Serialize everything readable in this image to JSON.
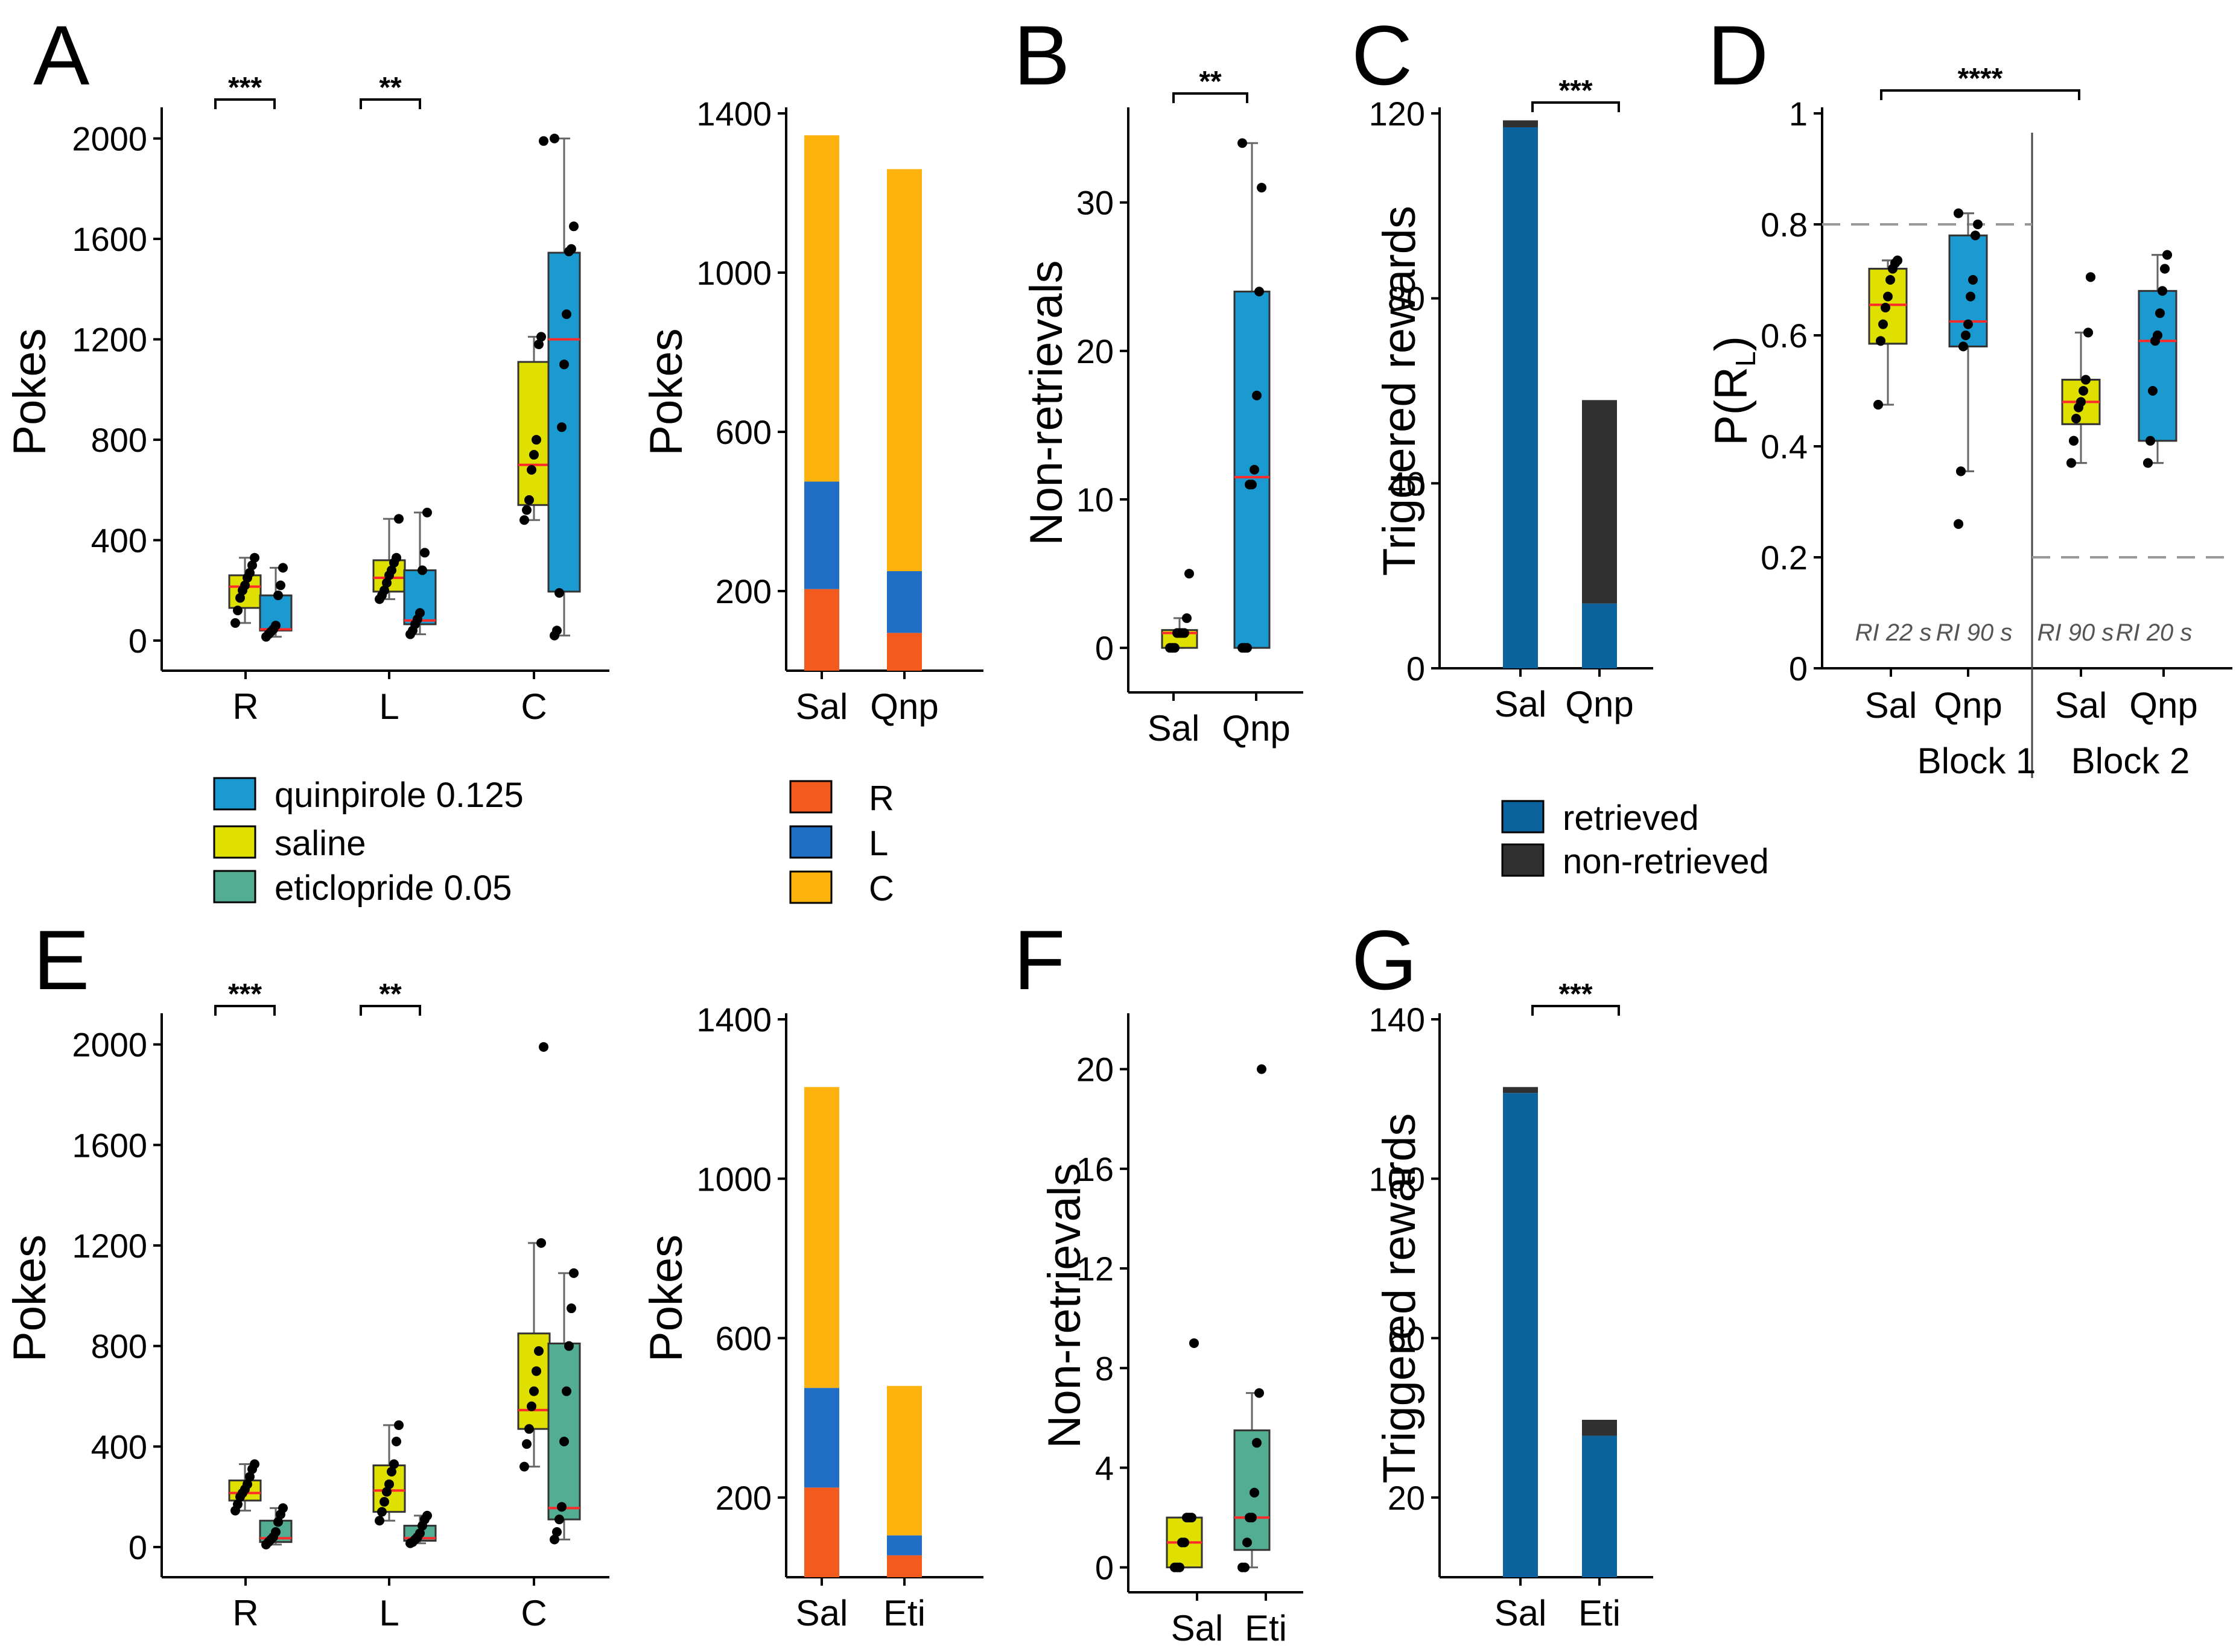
{
  "colors": {
    "quinpirole": "#1a9ad1",
    "saline": "#e0e000",
    "eticlopride": "#52ad92",
    "median": "#ff2a2a",
    "R": "#f25a1e",
    "L": "#1f6dc4",
    "C": "#fdb20d",
    "retrieved": "#0b629c",
    "nonretrieved": "#303030"
  },
  "legend_treatments": [
    "quinpirole 0.125",
    "saline",
    "eticlopride 0.05"
  ],
  "legend_ports": [
    "R",
    "L",
    "C"
  ],
  "legend_rewards": [
    "retrieved",
    "non-retrieved"
  ],
  "chart_data": [
    {
      "id": "A_box",
      "letter": "A",
      "type": "box",
      "ylabel": "Pokes",
      "ylim": [
        -120,
        2100
      ],
      "yticks": [
        0,
        400,
        800,
        1200,
        1600,
        2000
      ],
      "categories": [
        "R",
        "L",
        "C"
      ],
      "groups": [
        {
          "cat": "R",
          "treatment": "saline",
          "q1": 130,
          "median": 215,
          "q3": 260,
          "whislo": 70,
          "whishi": 330,
          "points": [
            70,
            120,
            170,
            200,
            220,
            250,
            270,
            300,
            330
          ]
        },
        {
          "cat": "R",
          "treatment": "quinpirole",
          "q1": 40,
          "median": 45,
          "q3": 180,
          "whislo": 15,
          "whishi": 290,
          "points": [
            15,
            25,
            35,
            45,
            60,
            180,
            220,
            290
          ]
        },
        {
          "cat": "L",
          "treatment": "saline",
          "q1": 195,
          "median": 250,
          "q3": 320,
          "whislo": 165,
          "whishi": 485,
          "points": [
            165,
            180,
            200,
            230,
            260,
            280,
            310,
            330,
            485
          ]
        },
        {
          "cat": "L",
          "treatment": "quinpirole",
          "q1": 65,
          "median": 80,
          "q3": 280,
          "whislo": 25,
          "whishi": 510,
          "points": [
            25,
            40,
            65,
            85,
            110,
            280,
            350,
            510
          ]
        },
        {
          "cat": "C",
          "treatment": "saline",
          "q1": 540,
          "median": 700,
          "q3": 1110,
          "whislo": 480,
          "whishi": 1210,
          "points": [
            480,
            520,
            560,
            680,
            740,
            800,
            1180,
            1210,
            1990
          ]
        },
        {
          "cat": "C",
          "treatment": "quinpirole",
          "q1": 195,
          "median": 1200,
          "q3": 1545,
          "whislo": 20,
          "whishi": 2000,
          "points": [
            20,
            40,
            190,
            850,
            1100,
            1300,
            1550,
            1560,
            1650,
            2000
          ]
        }
      ],
      "significance": [
        {
          "cat": "R",
          "label": "***"
        },
        {
          "cat": "L",
          "label": "**"
        }
      ]
    },
    {
      "id": "A_stack",
      "type": "stacked-bar",
      "ylabel": "Pokes",
      "ylim": [
        0,
        1400
      ],
      "yticks": [
        200,
        600,
        1000,
        1400
      ],
      "categories": [
        "Sal",
        "Qnp"
      ],
      "series": [
        {
          "name": "R",
          "values": [
            205,
            95
          ]
        },
        {
          "name": "L",
          "values": [
            270,
            155
          ]
        },
        {
          "name": "C",
          "values": [
            870,
            1010
          ]
        }
      ]
    },
    {
      "id": "B",
      "letter": "B",
      "type": "box",
      "ylabel": "Non-retrievals",
      "ylim": [
        -3,
        36
      ],
      "yticks": [
        0,
        10,
        20,
        30
      ],
      "categories": [
        "Sal",
        "Qnp"
      ],
      "groups": [
        {
          "cat": "Sal",
          "treatment": "saline",
          "q1": 0,
          "median": 1,
          "q3": 1.2,
          "whislo": 0,
          "whishi": 2,
          "points": [
            0,
            0,
            0,
            1,
            1,
            1,
            1,
            2,
            5
          ]
        },
        {
          "cat": "Qnp",
          "treatment": "quinpirole",
          "q1": 0,
          "median": 11.5,
          "q3": 24,
          "whislo": 0,
          "whishi": 34,
          "points": [
            0,
            0,
            0,
            11,
            11,
            12,
            17,
            24,
            31,
            34
          ]
        }
      ],
      "significance": [
        {
          "cats": [
            "Sal",
            "Qnp"
          ],
          "label": "**"
        }
      ]
    },
    {
      "id": "C",
      "letter": "C",
      "type": "stacked-bar",
      "ylabel": "Triggered rewards",
      "ylim": [
        0,
        120
      ],
      "yticks": [
        0,
        40,
        80,
        120
      ],
      "categories": [
        "Sal",
        "Qnp"
      ],
      "series": [
        {
          "name": "retrieved",
          "values": [
            117,
            14
          ]
        },
        {
          "name": "non-retrieved",
          "values": [
            1.5,
            44
          ]
        }
      ],
      "significance": [
        {
          "cats": [
            "Sal",
            "Qnp"
          ],
          "label": "***"
        }
      ]
    },
    {
      "id": "D",
      "letter": "D",
      "type": "box",
      "ylabel": "P(R",
      "ylabel_sub": "L",
      "ylabel_end": ")",
      "ylim": [
        0,
        1
      ],
      "yticks": [
        0,
        0.2,
        0.4,
        0.6,
        0.8,
        1
      ],
      "categories": [
        "Sal",
        "Qnp",
        "Sal",
        "Qnp"
      ],
      "blocks": [
        "Block 1",
        "Block 2"
      ],
      "schedules": [
        "RI 22 s",
        "RI 90 s",
        "RI 90 s",
        "RI 20 s"
      ],
      "reference_lines": [
        {
          "block": 1,
          "y": 0.8
        },
        {
          "block": 2,
          "y": 0.2
        }
      ],
      "groups": [
        {
          "cat": "Sal",
          "block": 1,
          "treatment": "saline",
          "q1": 0.585,
          "median": 0.655,
          "q3": 0.72,
          "whislo": 0.475,
          "whishi": 0.735,
          "points": [
            0.475,
            0.59,
            0.62,
            0.65,
            0.67,
            0.7,
            0.72,
            0.73,
            0.735
          ]
        },
        {
          "cat": "Qnp",
          "block": 1,
          "treatment": "quinpirole",
          "q1": 0.58,
          "median": 0.625,
          "q3": 0.78,
          "whislo": 0.355,
          "whishi": 0.82,
          "points": [
            0.26,
            0.355,
            0.58,
            0.6,
            0.62,
            0.67,
            0.7,
            0.78,
            0.8,
            0.82
          ]
        },
        {
          "cat": "Sal",
          "block": 2,
          "treatment": "saline",
          "q1": 0.44,
          "median": 0.48,
          "q3": 0.52,
          "whislo": 0.37,
          "whishi": 0.605,
          "points": [
            0.37,
            0.41,
            0.45,
            0.47,
            0.48,
            0.5,
            0.52,
            0.605,
            0.705
          ]
        },
        {
          "cat": "Qnp",
          "block": 2,
          "treatment": "quinpirole",
          "q1": 0.41,
          "median": 0.59,
          "q3": 0.68,
          "whislo": 0.37,
          "whishi": 0.745,
          "points": [
            0.37,
            0.41,
            0.5,
            0.59,
            0.6,
            0.64,
            0.68,
            0.72,
            0.745
          ]
        }
      ],
      "significance": [
        {
          "cats": [
            "Block 1 Sal",
            "Block 2 Sal"
          ],
          "label": "****"
        }
      ]
    },
    {
      "id": "E_box",
      "letter": "E",
      "type": "box",
      "ylabel": "Pokes",
      "ylim": [
        -120,
        2100
      ],
      "yticks": [
        0,
        400,
        800,
        1200,
        1600,
        2000
      ],
      "categories": [
        "R",
        "L",
        "C"
      ],
      "groups": [
        {
          "cat": "R",
          "treatment": "saline",
          "q1": 185,
          "median": 215,
          "q3": 265,
          "whislo": 145,
          "whishi": 330,
          "points": [
            145,
            170,
            200,
            215,
            230,
            250,
            280,
            310,
            330
          ]
        },
        {
          "cat": "R",
          "treatment": "eticlopride",
          "q1": 20,
          "median": 35,
          "q3": 105,
          "whislo": 10,
          "whishi": 155,
          "points": [
            10,
            20,
            30,
            40,
            60,
            100,
            130,
            155
          ]
        },
        {
          "cat": "L",
          "treatment": "saline",
          "q1": 140,
          "median": 225,
          "q3": 325,
          "whislo": 105,
          "whishi": 485,
          "points": [
            105,
            140,
            180,
            220,
            250,
            300,
            330,
            420,
            485
          ]
        },
        {
          "cat": "L",
          "treatment": "eticlopride",
          "q1": 25,
          "median": 35,
          "q3": 85,
          "whislo": 15,
          "whishi": 125,
          "points": [
            15,
            20,
            30,
            40,
            55,
            85,
            110,
            125
          ]
        },
        {
          "cat": "C",
          "treatment": "saline",
          "q1": 470,
          "median": 545,
          "q3": 850,
          "whislo": 320,
          "whishi": 1210,
          "points": [
            320,
            410,
            470,
            560,
            620,
            700,
            780,
            1210,
            1990
          ]
        },
        {
          "cat": "C",
          "treatment": "eticlopride",
          "q1": 110,
          "median": 155,
          "q3": 810,
          "whislo": 30,
          "whishi": 1090,
          "points": [
            30,
            60,
            110,
            160,
            420,
            620,
            800,
            950,
            1090
          ]
        }
      ],
      "significance": [
        {
          "cat": "R",
          "label": "***"
        },
        {
          "cat": "L",
          "label": "**"
        }
      ]
    },
    {
      "id": "E_stack",
      "type": "stacked-bar",
      "ylabel": "Pokes",
      "ylim": [
        0,
        1400
      ],
      "yticks": [
        200,
        600,
        1000,
        1400
      ],
      "categories": [
        "Sal",
        "Eti"
      ],
      "series": [
        {
          "name": "R",
          "values": [
            225,
            55
          ]
        },
        {
          "name": "L",
          "values": [
            250,
            50
          ]
        },
        {
          "name": "C",
          "values": [
            755,
            375
          ]
        }
      ]
    },
    {
      "id": "F",
      "letter": "F",
      "type": "box",
      "ylabel": "Non-retrievals",
      "ylim": [
        -1,
        22
      ],
      "yticks": [
        0,
        4,
        8,
        12,
        16,
        20
      ],
      "categories": [
        "Sal",
        "Eti"
      ],
      "groups": [
        {
          "cat": "Sal",
          "treatment": "saline",
          "q1": 0,
          "median": 1,
          "q3": 2,
          "whislo": 0,
          "whishi": 2,
          "points": [
            0,
            0,
            0,
            1,
            1,
            2,
            2,
            2,
            9
          ]
        },
        {
          "cat": "Eti",
          "treatment": "eticlopride",
          "q1": 0.7,
          "median": 2,
          "q3": 5.5,
          "whislo": 0,
          "whishi": 7,
          "points": [
            0,
            0,
            1,
            2,
            2,
            3,
            5,
            7,
            20
          ]
        }
      ]
    },
    {
      "id": "G",
      "letter": "G",
      "type": "stacked-bar",
      "ylabel": "Triggered rewards",
      "ylim": [
        0,
        140
      ],
      "yticks": [
        20,
        60,
        100,
        140
      ],
      "categories": [
        "Sal",
        "Eti"
      ],
      "series": [
        {
          "name": "retrieved",
          "values": [
            121.5,
            35.5
          ]
        },
        {
          "name": "non-retrieved",
          "values": [
            1.5,
            4
          ]
        }
      ],
      "significance": [
        {
          "cats": [
            "Sal",
            "Eti"
          ],
          "label": "***"
        }
      ]
    }
  ]
}
